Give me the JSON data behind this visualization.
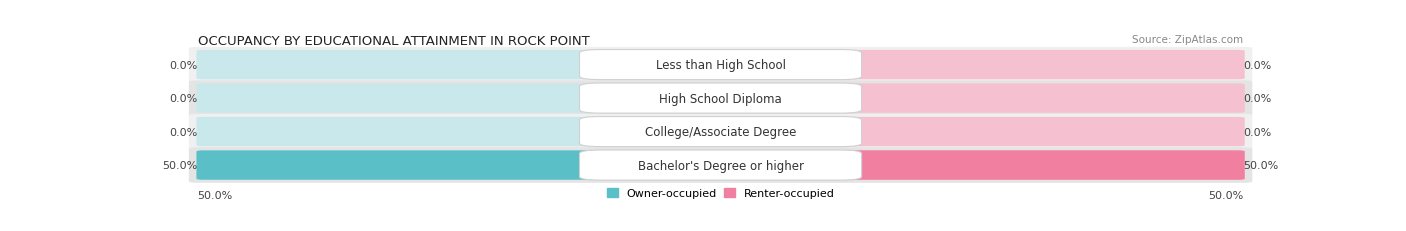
{
  "title": "OCCUPANCY BY EDUCATIONAL ATTAINMENT IN ROCK POINT",
  "source": "Source: ZipAtlas.com",
  "categories": [
    "Less than High School",
    "High School Diploma",
    "College/Associate Degree",
    "Bachelor's Degree or higher"
  ],
  "owner_values": [
    0.0,
    0.0,
    0.0,
    50.0
  ],
  "renter_values": [
    0.0,
    0.0,
    0.0,
    50.0
  ],
  "owner_color": "#5bbfc8",
  "renter_color": "#f07fa0",
  "bar_bg_left_color": "#c8e8eb",
  "bar_bg_right_color": "#f5c0d0",
  "row_bg_even": "#f0f0f0",
  "row_bg_odd": "#e4e4e4",
  "max_val": 50.0,
  "title_fontsize": 9.5,
  "source_fontsize": 7.5,
  "label_fontsize": 8.5,
  "value_fontsize": 8,
  "legend_fontsize": 8
}
